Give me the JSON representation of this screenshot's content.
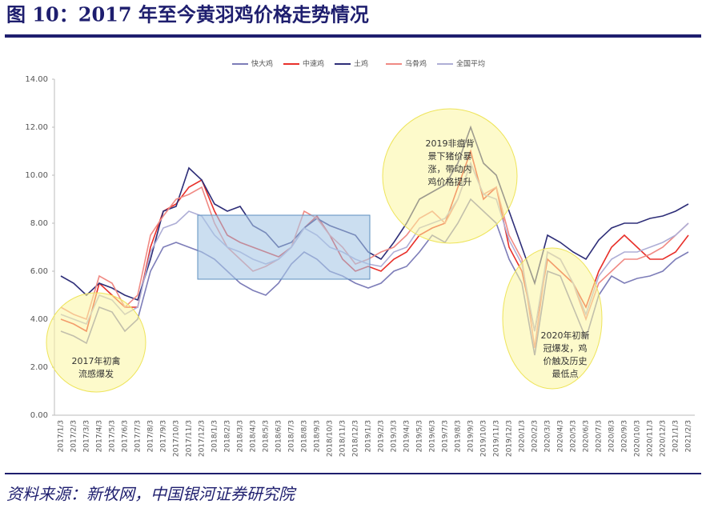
{
  "chart_data": {
    "type": "line",
    "title": "图 10：2017 年至今黄羽鸡价格走势情况",
    "source": "资料来源：新牧网，中国银河证券研究院",
    "categories": [
      "2017/1/3",
      "2017/2/3",
      "2017/3/3",
      "2017/4/3",
      "2017/5/3",
      "2017/6/3",
      "2017/7/3",
      "2017/8/3",
      "2017/9/3",
      "2017/10/3",
      "2017/11/3",
      "2017/12/3",
      "2018/1/3",
      "2018/2/3",
      "2018/3/3",
      "2018/4/3",
      "2018/5/3",
      "2018/6/3",
      "2018/7/3",
      "2018/8/3",
      "2018/9/3",
      "2018/10/3",
      "2018/11/3",
      "2018/12/3",
      "2019/1/3",
      "2019/2/3",
      "2019/3/3",
      "2019/4/3",
      "2019/5/3",
      "2019/6/3",
      "2019/7/3",
      "2019/8/3",
      "2019/9/3",
      "2019/10/3",
      "2019/11/3",
      "2019/12/3",
      "2020/1/3",
      "2020/2/3",
      "2020/3/3",
      "2020/4/3",
      "2020/5/3",
      "2020/6/3",
      "2020/7/3",
      "2020/8/3",
      "2020/9/3",
      "2020/10/3",
      "2020/11/3",
      "2020/12/3",
      "2021/1/3",
      "2021/2/3"
    ],
    "series": [
      {
        "name": "快大鸡",
        "color": "#7d7db8",
        "values": [
          3.5,
          3.3,
          3.0,
          4.5,
          4.3,
          3.5,
          4.0,
          6.0,
          7.0,
          7.2,
          7.0,
          6.8,
          6.5,
          6.0,
          5.5,
          5.2,
          5.0,
          5.5,
          6.3,
          6.8,
          6.5,
          6.0,
          5.8,
          5.5,
          5.3,
          5.5,
          6.0,
          6.2,
          6.8,
          7.5,
          7.2,
          8.0,
          9.0,
          8.5,
          8.0,
          6.5,
          5.5,
          2.5,
          6.0,
          5.8,
          4.5,
          3.2,
          5.0,
          5.8,
          5.5,
          5.7,
          5.8,
          6.0,
          6.5,
          6.8
        ]
      },
      {
        "name": "中速鸡",
        "color": "#e8302a",
        "values": [
          4.0,
          3.8,
          3.5,
          5.5,
          5.0,
          4.5,
          4.5,
          7.0,
          8.5,
          8.8,
          9.5,
          9.8,
          8.5,
          7.5,
          7.2,
          7.0,
          6.8,
          6.6,
          7.0,
          7.8,
          8.3,
          7.5,
          6.5,
          6.0,
          6.2,
          6.0,
          6.5,
          6.8,
          7.5,
          7.8,
          8.0,
          9.5,
          11.0,
          9.0,
          9.5,
          7.0,
          6.0,
          3.5,
          6.5,
          6.0,
          5.5,
          4.5,
          6.0,
          7.0,
          7.5,
          7.0,
          6.5,
          6.5,
          6.8,
          7.5
        ]
      },
      {
        "name": "土鸡",
        "color": "#2e2e78",
        "values": [
          5.8,
          5.5,
          5.0,
          5.5,
          5.3,
          5.0,
          4.8,
          6.5,
          8.5,
          8.7,
          10.3,
          9.8,
          8.8,
          8.5,
          8.7,
          7.9,
          7.6,
          7.0,
          7.2,
          7.8,
          8.2,
          7.9,
          7.7,
          7.5,
          6.8,
          6.5,
          7.2,
          8.0,
          9.0,
          9.3,
          9.6,
          10.5,
          12.0,
          10.5,
          10.0,
          8.5,
          7.0,
          5.5,
          7.5,
          7.2,
          6.8,
          6.5,
          7.3,
          7.8,
          8.0,
          8.0,
          8.2,
          8.3,
          8.5,
          8.8
        ]
      },
      {
        "name": "乌骨鸡",
        "color": "#f08a84",
        "values": [
          4.5,
          4.2,
          4.0,
          5.8,
          5.5,
          4.5,
          5.0,
          7.5,
          8.3,
          9.0,
          9.2,
          9.5,
          8.0,
          7.0,
          6.5,
          6.0,
          6.2,
          6.5,
          7.0,
          8.5,
          8.2,
          7.5,
          7.0,
          6.3,
          6.5,
          6.8,
          7.0,
          7.5,
          8.2,
          8.5,
          8.0,
          9.0,
          10.5,
          9.2,
          9.5,
          7.5,
          6.5,
          2.8,
          6.8,
          6.5,
          5.5,
          4.0,
          5.5,
          6.0,
          6.5,
          6.5,
          6.7,
          7.0,
          7.5,
          8.0
        ]
      },
      {
        "name": "全国平均",
        "color": "#aeaed6",
        "values": [
          4.2,
          4.0,
          3.8,
          5.0,
          4.8,
          4.2,
          4.5,
          6.8,
          7.8,
          8.0,
          8.5,
          8.3,
          7.5,
          7.0,
          6.8,
          6.5,
          6.3,
          6.5,
          7.0,
          7.8,
          7.5,
          7.0,
          6.8,
          6.5,
          6.3,
          6.2,
          6.8,
          7.0,
          7.8,
          8.0,
          8.2,
          9.0,
          10.5,
          9.2,
          9.0,
          7.3,
          6.3,
          3.5,
          6.8,
          6.5,
          5.5,
          4.2,
          5.8,
          6.5,
          6.8,
          6.8,
          7.0,
          7.2,
          7.5,
          8.0
        ]
      }
    ],
    "ylim": [
      0,
      14
    ],
    "yticks": [
      {
        "value": 0,
        "label": "0.00"
      },
      {
        "value": 2,
        "label": "2.00"
      },
      {
        "value": 4,
        "label": "4.00"
      },
      {
        "value": 6,
        "label": "6.00"
      },
      {
        "value": 8,
        "label": "8.00"
      },
      {
        "value": 10,
        "label": "10.00"
      },
      {
        "value": 12,
        "label": "12.00"
      },
      {
        "value": 14,
        "label": "14.00"
      }
    ],
    "annotations": [
      {
        "lines": [
          "2017年初禽",
          "流感爆发"
        ]
      },
      {
        "lines": [
          "2019非瘟背",
          "景下猪价暴",
          "涨，带动内",
          "鸡价格提升"
        ]
      },
      {
        "lines": [
          "2020年初新",
          "冠爆发，鸡",
          "价触及历史",
          "最低点"
        ]
      }
    ]
  }
}
